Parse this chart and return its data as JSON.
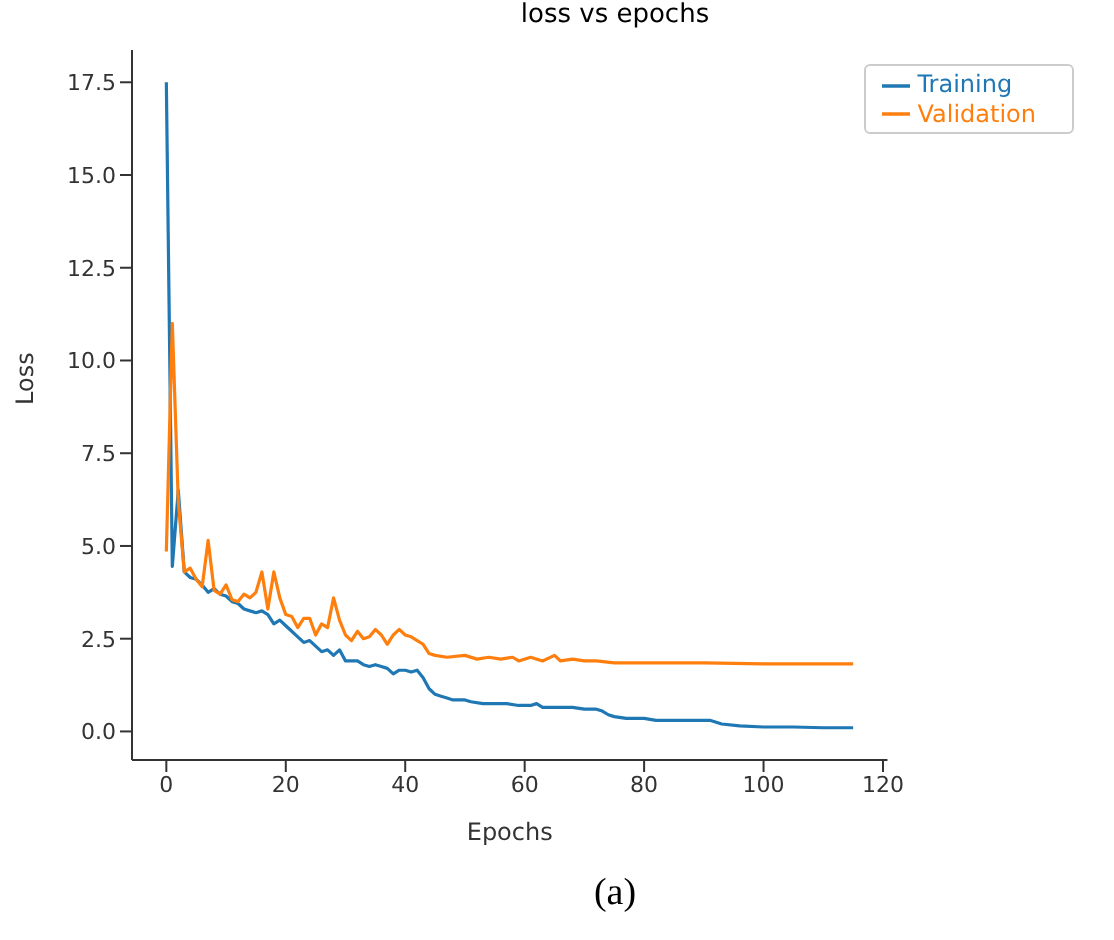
{
  "chart_data": {
    "type": "line",
    "title": "loss vs epochs",
    "xlabel": "Epochs",
    "ylabel": "Loss",
    "annotations": [
      "(a)"
    ],
    "xlim": [
      -5.75,
      120.75
    ],
    "xticks": [
      0,
      20,
      40,
      60,
      80,
      100,
      120
    ],
    "ylim": [
      -0.77,
      18.37
    ],
    "yticks": [
      {
        "value": 0,
        "label": "0.0"
      },
      {
        "value": 2.5,
        "label": "2.5"
      },
      {
        "value": 5,
        "label": "5.0"
      },
      {
        "value": 7.5,
        "label": "7.5"
      },
      {
        "value": 10,
        "label": "10.0"
      },
      {
        "value": 12.5,
        "label": "12.5"
      },
      {
        "value": 15,
        "label": "15.0"
      },
      {
        "value": 17.5,
        "label": "17.5"
      }
    ],
    "grid": false,
    "legend": "top right",
    "marker": "none",
    "line_style": "solid",
    "series": [
      {
        "name": "Training",
        "color": "#1f77b4",
        "x": [
          0,
          1,
          2,
          3,
          4,
          5,
          6,
          7,
          8,
          9,
          10,
          11,
          12,
          13,
          14,
          15,
          16,
          17,
          18,
          19,
          20,
          21,
          22,
          23,
          24,
          25,
          26,
          27,
          28,
          29,
          30,
          32,
          33,
          34,
          35,
          36,
          37,
          38,
          39,
          40,
          41,
          42,
          43,
          44,
          45,
          46,
          47,
          48,
          50,
          51,
          53,
          55,
          57,
          59,
          61,
          62,
          63,
          66,
          68,
          70,
          72,
          73,
          74,
          75,
          77,
          80,
          82,
          85,
          88,
          91,
          93,
          96,
          100,
          105,
          110,
          115
        ],
        "values": [
          17.5,
          4.45,
          6.5,
          4.3,
          4.15,
          4.1,
          3.95,
          3.75,
          3.85,
          3.7,
          3.65,
          3.5,
          3.45,
          3.3,
          3.25,
          3.2,
          3.25,
          3.15,
          2.9,
          3.0,
          2.85,
          2.7,
          2.55,
          2.4,
          2.45,
          2.3,
          2.15,
          2.2,
          2.05,
          2.2,
          1.9,
          1.9,
          1.8,
          1.75,
          1.8,
          1.75,
          1.7,
          1.55,
          1.65,
          1.65,
          1.6,
          1.65,
          1.45,
          1.15,
          1.0,
          0.95,
          0.9,
          0.85,
          0.85,
          0.8,
          0.75,
          0.75,
          0.75,
          0.7,
          0.7,
          0.75,
          0.65,
          0.65,
          0.65,
          0.6,
          0.6,
          0.55,
          0.45,
          0.4,
          0.35,
          0.35,
          0.3,
          0.3,
          0.3,
          0.3,
          0.2,
          0.15,
          0.12,
          0.12,
          0.1,
          0.1
        ]
      },
      {
        "name": "Validation",
        "color": "#ff7f0e",
        "x": [
          0,
          1,
          2,
          3,
          4,
          5,
          6,
          7,
          8,
          9,
          10,
          11,
          12,
          13,
          14,
          15,
          16,
          17,
          18,
          19,
          20,
          21,
          22,
          23,
          24,
          25,
          26,
          27,
          28,
          29,
          30,
          31,
          32,
          33,
          34,
          35,
          36,
          37,
          38,
          39,
          40,
          41,
          42,
          43,
          44,
          45,
          47,
          50,
          52,
          54,
          56,
          58,
          59,
          61,
          63,
          65,
          66,
          68,
          70,
          72,
          75,
          80,
          90,
          100,
          115
        ],
        "values": [
          4.85,
          11.0,
          6.2,
          4.3,
          4.4,
          4.1,
          3.9,
          5.15,
          3.8,
          3.7,
          3.95,
          3.55,
          3.5,
          3.7,
          3.6,
          3.75,
          4.3,
          3.3,
          4.3,
          3.6,
          3.15,
          3.1,
          2.8,
          3.05,
          3.05,
          2.6,
          2.9,
          2.8,
          3.6,
          3.0,
          2.6,
          2.45,
          2.7,
          2.5,
          2.55,
          2.75,
          2.6,
          2.35,
          2.6,
          2.75,
          2.6,
          2.55,
          2.45,
          2.35,
          2.1,
          2.05,
          2.0,
          2.05,
          1.95,
          2.0,
          1.95,
          2.0,
          1.9,
          2.0,
          1.9,
          2.05,
          1.9,
          1.95,
          1.9,
          1.9,
          1.85,
          1.85,
          1.85,
          1.82,
          1.82
        ]
      }
    ]
  }
}
